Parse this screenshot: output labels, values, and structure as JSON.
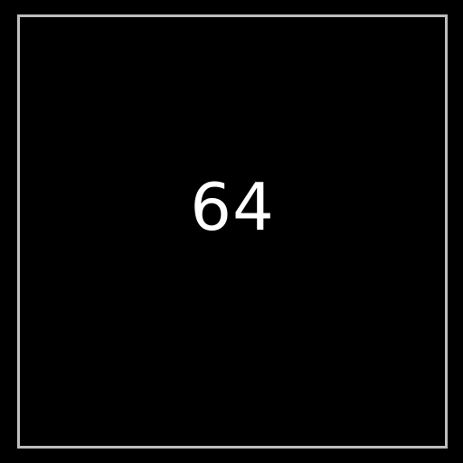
{
  "tile": {
    "value": "64"
  },
  "colors": {
    "background": "#000000",
    "border": "#bdbdbd",
    "text": "#ffffff"
  }
}
